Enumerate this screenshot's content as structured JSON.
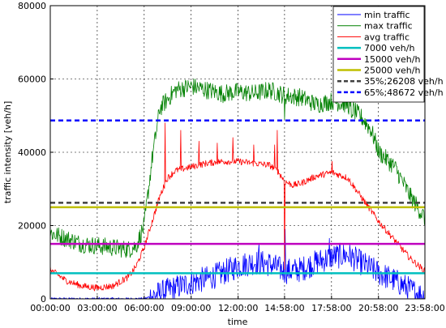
{
  "chart_data": {
    "type": "line",
    "xlabel": "time",
    "ylabel": "traffic intensity [veh/h]",
    "grid": true,
    "legend_position": "top-right",
    "xlim": [
      0,
      1436
    ],
    "ylim": [
      0,
      80000
    ],
    "x_unit": "minutes since 00:00:00",
    "x_ticks": [
      {
        "value": 0,
        "label": "00:00:00"
      },
      {
        "value": 180,
        "label": "03:00:00"
      },
      {
        "value": 360,
        "label": "06:00:00"
      },
      {
        "value": 540,
        "label": "09:00:00"
      },
      {
        "value": 720,
        "label": "12:00:00"
      },
      {
        "value": 898,
        "label": "14:58:00"
      },
      {
        "value": 1078,
        "label": "17:58:00"
      },
      {
        "value": 1258,
        "label": "20:58:00"
      },
      {
        "value": 1438,
        "label": "23:58:00"
      }
    ],
    "y_ticks": [
      {
        "value": 0,
        "label": "0"
      },
      {
        "value": 20000,
        "label": "20000"
      },
      {
        "value": 40000,
        "label": "40000"
      },
      {
        "value": 60000,
        "label": "60000"
      },
      {
        "value": 80000,
        "label": "80000"
      }
    ],
    "series": [
      {
        "name": "min traffic",
        "kind": "line",
        "color": "#0000ff",
        "x": [
          0,
          60,
          120,
          180,
          240,
          300,
          360,
          420,
          480,
          540,
          600,
          660,
          720,
          780,
          840,
          900,
          960,
          1020,
          1080,
          1140,
          1200,
          1260,
          1320,
          1380,
          1436
        ],
        "y": [
          0,
          0,
          0,
          0,
          0,
          0,
          0,
          1500,
          3000,
          4500,
          5500,
          7000,
          9000,
          10000,
          9500,
          7500,
          8000,
          10000,
          11500,
          12000,
          9500,
          7000,
          5000,
          2500,
          500
        ],
        "noise": 3500,
        "spikes": [
          {
            "x": 900,
            "y": 19000
          },
          {
            "x": 1070,
            "y": 16500
          },
          {
            "x": 800,
            "y": 15000
          }
        ]
      },
      {
        "name": "max traffic",
        "kind": "line",
        "color": "#008000",
        "x": [
          0,
          60,
          120,
          180,
          240,
          300,
          330,
          360,
          390,
          420,
          480,
          540,
          600,
          660,
          720,
          780,
          840,
          900,
          960,
          1020,
          1080,
          1140,
          1200,
          1230,
          1260,
          1320,
          1380,
          1436
        ],
        "y": [
          18000,
          16500,
          15000,
          14500,
          14000,
          13500,
          14500,
          20000,
          38000,
          52000,
          57000,
          58000,
          57000,
          56000,
          56500,
          56000,
          57000,
          55500,
          55000,
          53000,
          54000,
          53000,
          49000,
          46000,
          40000,
          36000,
          28000,
          22000
        ],
        "noise": 2500,
        "spikes": [
          {
            "x": 898,
            "y": 49000
          },
          {
            "x": 1155,
            "y": 49500
          }
        ]
      },
      {
        "name": "avg traffic",
        "kind": "line",
        "color": "#ff0000",
        "x": [
          0,
          30,
          60,
          120,
          180,
          240,
          300,
          330,
          360,
          390,
          420,
          450,
          480,
          540,
          600,
          660,
          720,
          780,
          840,
          870,
          900,
          930,
          960,
          1020,
          1080,
          1140,
          1200,
          1260,
          1320,
          1380,
          1436
        ],
        "y": [
          8000,
          6500,
          5000,
          3500,
          3000,
          3500,
          6000,
          9000,
          14000,
          21000,
          28000,
          33000,
          35000,
          36000,
          37000,
          37500,
          37500,
          37000,
          36500,
          35000,
          32000,
          31000,
          31500,
          33500,
          34500,
          33000,
          27000,
          21000,
          16000,
          11000,
          7500
        ],
        "noise": 900,
        "spikes": [
          {
            "x": 440,
            "y": 48000
          },
          {
            "x": 500,
            "y": 46000
          },
          {
            "x": 570,
            "y": 43000
          },
          {
            "x": 640,
            "y": 42500
          },
          {
            "x": 700,
            "y": 44000
          },
          {
            "x": 780,
            "y": 42000
          },
          {
            "x": 860,
            "y": 42000
          },
          {
            "x": 870,
            "y": 46000
          },
          {
            "x": 898,
            "y": 8000
          },
          {
            "x": 1080,
            "y": 37500
          }
        ]
      },
      {
        "name": "7000 veh/h",
        "kind": "hline",
        "value": 7000,
        "color": "#00bfbf"
      },
      {
        "name": "15000 veh/h",
        "kind": "hline",
        "value": 15000,
        "color": "#bf00bf"
      },
      {
        "name": "25000 veh/h",
        "kind": "hline",
        "value": 25000,
        "color": "#bfbf00"
      },
      {
        "name": "35%;26208 veh/h",
        "kind": "hline-dashed",
        "value": 26208,
        "color": "#404040"
      },
      {
        "name": "65%;48672 veh/h",
        "kind": "hline-dashed",
        "value": 48672,
        "color": "#0000ff"
      }
    ]
  }
}
